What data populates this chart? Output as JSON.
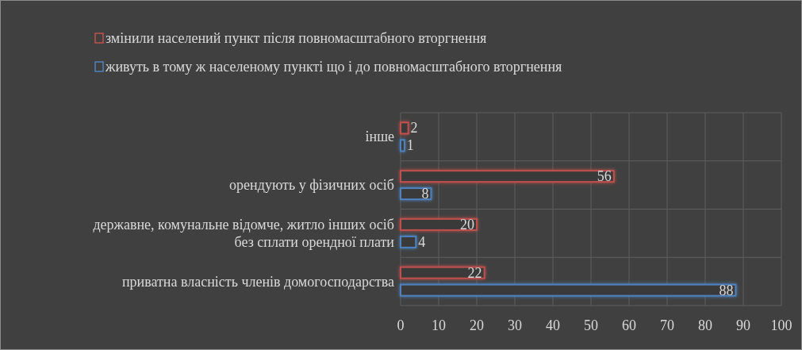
{
  "chart_data": {
    "type": "bar",
    "orientation": "horizontal",
    "categories": [
      "інше",
      "орендують  у фізичних осіб",
      "державне, комунальне відомче, житло інших осіб без сплати орендної плати",
      "приватна власність членів домогосподарства"
    ],
    "series": [
      {
        "name": "змінили населений пункт після повномасштабного вторгнення",
        "color": "#c0504d",
        "values": [
          2,
          56,
          20,
          22
        ]
      },
      {
        "name": "живуть в тому ж населеному пункті що і до повномасштабного вторгнення",
        "color": "#4f81bd",
        "values": [
          1,
          8,
          4,
          88
        ]
      }
    ],
    "xlim": [
      0,
      100
    ],
    "xticks": [
      0,
      10,
      20,
      30,
      40,
      50,
      60,
      70,
      80,
      90,
      100
    ],
    "grid": true,
    "legend": "top",
    "data_labels": true
  }
}
